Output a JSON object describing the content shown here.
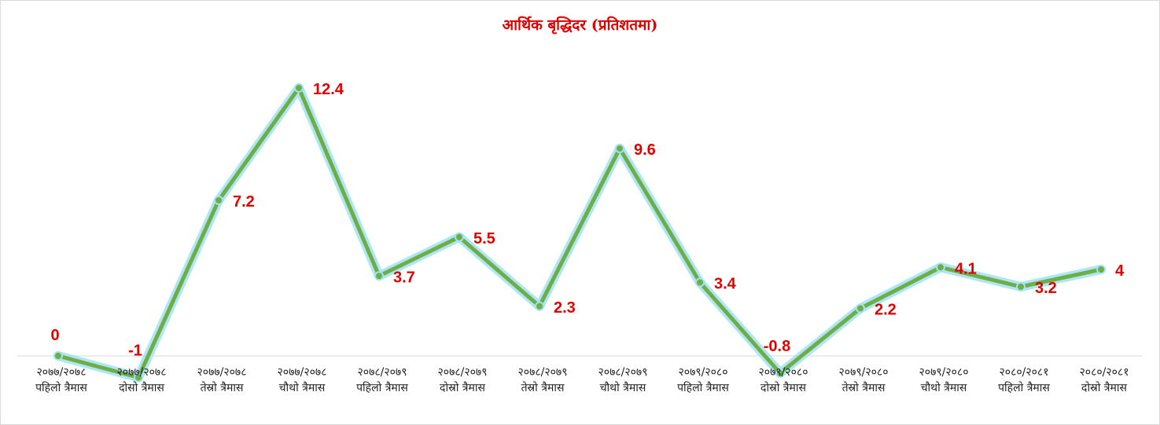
{
  "chart_data": {
    "type": "line",
    "title": "आर्थिक बृद्धिदर (प्रतिशतमा)",
    "xlabel": "",
    "ylabel": "",
    "categories": [
      [
        "२०७७/२०७८",
        "पहिलो त्रैमास"
      ],
      [
        "२०७७/२०७८",
        "दोसो त्रैमास"
      ],
      [
        "२०७७/२०७८",
        "तेस्रो त्रैमास"
      ],
      [
        "२०७७/२०७८",
        "चौथो त्रैमास"
      ],
      [
        "२०७८/२०७९",
        "पहिलो त्रैमास"
      ],
      [
        "२०७८/२०७९",
        "दोस्रो त्रैमास"
      ],
      [
        "२०७८/२०७९",
        "तेस्रो त्रैमास"
      ],
      [
        "२०७८/२०७९",
        "चौथो त्रैमास"
      ],
      [
        "२०७९/२०८०",
        "पहिलो त्रैमास"
      ],
      [
        "२०७९/२०८०",
        "दोस्रो त्रैमास"
      ],
      [
        "२०७९/२०८०",
        "तेस्रो त्रैमास"
      ],
      [
        "२०७९/२०८०",
        "चौथो त्रैमास"
      ],
      [
        "२०८०/२०८१",
        "पहिलो त्रैमास"
      ],
      [
        "२०८०/२०८१",
        "दोस्रो त्रैमास"
      ]
    ],
    "series": [
      {
        "values": [
          0,
          -1,
          7.2,
          12.4,
          3.7,
          5.5,
          2.3,
          9.6,
          3.4,
          -0.8,
          2.2,
          4.1,
          3.2,
          4
        ]
      }
    ],
    "labels": [
      "0",
      "-1",
      "7.2",
      "12.4",
      "3.7",
      "5.5",
      "2.3",
      "9.6",
      "3.4",
      "-0.8",
      "2.2",
      "4.1",
      "3.2",
      "4"
    ],
    "ylim": [
      -1,
      14
    ],
    "grid": false,
    "legend": "none",
    "colors": {
      "line": "#70ad47",
      "glow": "#9fe3f2",
      "label": "#e00000",
      "axis": "#d9d9d9"
    }
  }
}
